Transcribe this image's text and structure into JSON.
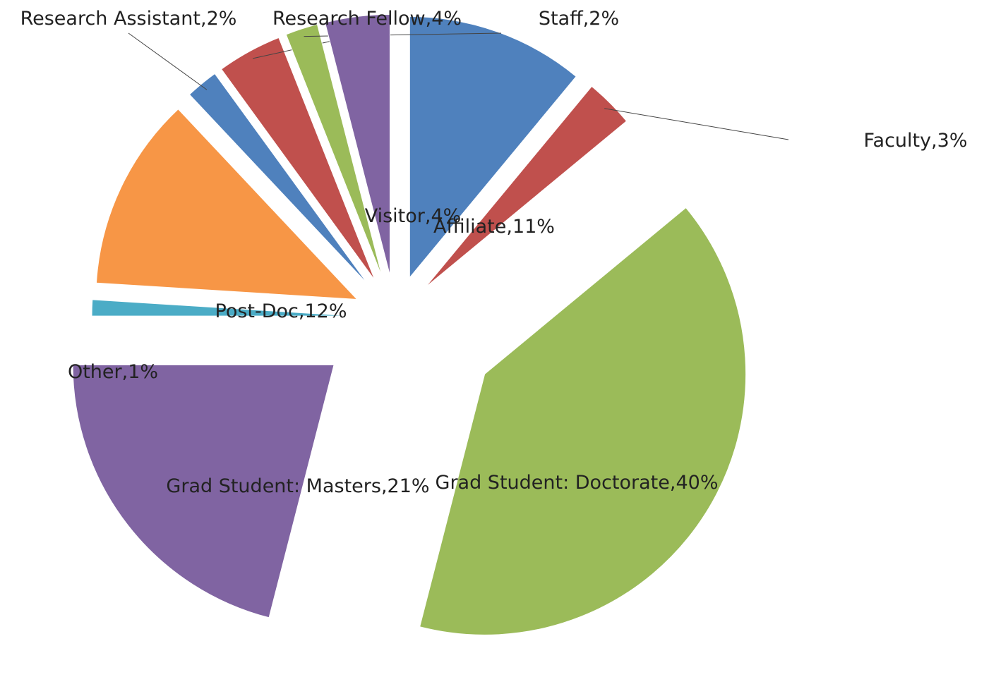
{
  "chart_data": {
    "type": "pie",
    "categories": [
      "Affiliate",
      "Faculty",
      "Grad Student: Doctorate",
      "Grad Student: Masters",
      "Other",
      "Post-Doc",
      "Research Assistant",
      "Research Fellow",
      "Staff",
      "Visitor"
    ],
    "values": [
      11,
      3,
      40,
      21,
      1,
      12,
      2,
      4,
      2,
      4
    ],
    "value_labels": [
      ",11%",
      ",3%",
      ",40%",
      ",21%",
      ",1%",
      ",12%",
      ",2%",
      ",4%",
      ",2%",
      ",4%"
    ],
    "colors": [
      "#4f81bd",
      "#c0504d",
      "#9bbb59",
      "#8064a2",
      "#4bacc6",
      "#f79646",
      "#4f81bd",
      "#c0504d",
      "#9bbb59",
      "#8064a2"
    ]
  }
}
